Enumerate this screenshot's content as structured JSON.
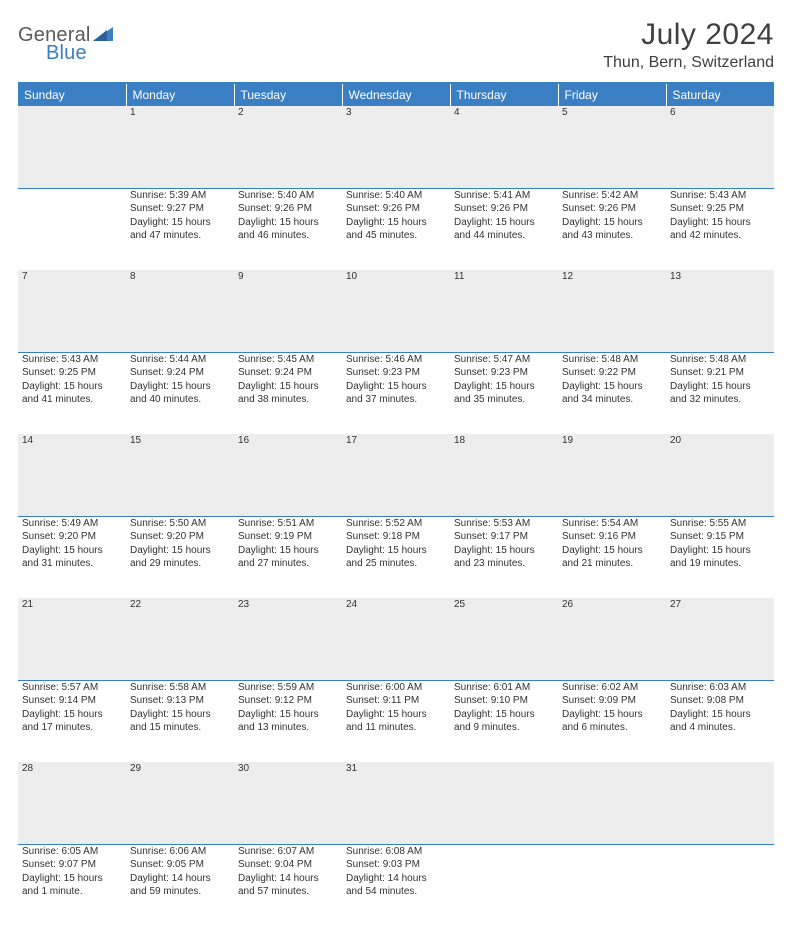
{
  "logo": {
    "word1": "General",
    "word2": "Blue"
  },
  "title": "July 2024",
  "location": "Thun, Bern, Switzerland",
  "colors": {
    "accent": "#3a7fc4",
    "header_bg": "#3a7fc4",
    "header_text": "#ffffff",
    "daynum_bg": "#ededed",
    "text": "#333333",
    "title_text": "#404040"
  },
  "weekdays": [
    "Sunday",
    "Monday",
    "Tuesday",
    "Wednesday",
    "Thursday",
    "Friday",
    "Saturday"
  ],
  "weeks": [
    {
      "nums": [
        "",
        "1",
        "2",
        "3",
        "4",
        "5",
        "6"
      ],
      "cells": [
        [],
        [
          "Sunrise: 5:39 AM",
          "Sunset: 9:27 PM",
          "Daylight: 15 hours",
          "and 47 minutes."
        ],
        [
          "Sunrise: 5:40 AM",
          "Sunset: 9:26 PM",
          "Daylight: 15 hours",
          "and 46 minutes."
        ],
        [
          "Sunrise: 5:40 AM",
          "Sunset: 9:26 PM",
          "Daylight: 15 hours",
          "and 45 minutes."
        ],
        [
          "Sunrise: 5:41 AM",
          "Sunset: 9:26 PM",
          "Daylight: 15 hours",
          "and 44 minutes."
        ],
        [
          "Sunrise: 5:42 AM",
          "Sunset: 9:26 PM",
          "Daylight: 15 hours",
          "and 43 minutes."
        ],
        [
          "Sunrise: 5:43 AM",
          "Sunset: 9:25 PM",
          "Daylight: 15 hours",
          "and 42 minutes."
        ]
      ]
    },
    {
      "nums": [
        "7",
        "8",
        "9",
        "10",
        "11",
        "12",
        "13"
      ],
      "cells": [
        [
          "Sunrise: 5:43 AM",
          "Sunset: 9:25 PM",
          "Daylight: 15 hours",
          "and 41 minutes."
        ],
        [
          "Sunrise: 5:44 AM",
          "Sunset: 9:24 PM",
          "Daylight: 15 hours",
          "and 40 minutes."
        ],
        [
          "Sunrise: 5:45 AM",
          "Sunset: 9:24 PM",
          "Daylight: 15 hours",
          "and 38 minutes."
        ],
        [
          "Sunrise: 5:46 AM",
          "Sunset: 9:23 PM",
          "Daylight: 15 hours",
          "and 37 minutes."
        ],
        [
          "Sunrise: 5:47 AM",
          "Sunset: 9:23 PM",
          "Daylight: 15 hours",
          "and 35 minutes."
        ],
        [
          "Sunrise: 5:48 AM",
          "Sunset: 9:22 PM",
          "Daylight: 15 hours",
          "and 34 minutes."
        ],
        [
          "Sunrise: 5:48 AM",
          "Sunset: 9:21 PM",
          "Daylight: 15 hours",
          "and 32 minutes."
        ]
      ]
    },
    {
      "nums": [
        "14",
        "15",
        "16",
        "17",
        "18",
        "19",
        "20"
      ],
      "cells": [
        [
          "Sunrise: 5:49 AM",
          "Sunset: 9:20 PM",
          "Daylight: 15 hours",
          "and 31 minutes."
        ],
        [
          "Sunrise: 5:50 AM",
          "Sunset: 9:20 PM",
          "Daylight: 15 hours",
          "and 29 minutes."
        ],
        [
          "Sunrise: 5:51 AM",
          "Sunset: 9:19 PM",
          "Daylight: 15 hours",
          "and 27 minutes."
        ],
        [
          "Sunrise: 5:52 AM",
          "Sunset: 9:18 PM",
          "Daylight: 15 hours",
          "and 25 minutes."
        ],
        [
          "Sunrise: 5:53 AM",
          "Sunset: 9:17 PM",
          "Daylight: 15 hours",
          "and 23 minutes."
        ],
        [
          "Sunrise: 5:54 AM",
          "Sunset: 9:16 PM",
          "Daylight: 15 hours",
          "and 21 minutes."
        ],
        [
          "Sunrise: 5:55 AM",
          "Sunset: 9:15 PM",
          "Daylight: 15 hours",
          "and 19 minutes."
        ]
      ]
    },
    {
      "nums": [
        "21",
        "22",
        "23",
        "24",
        "25",
        "26",
        "27"
      ],
      "cells": [
        [
          "Sunrise: 5:57 AM",
          "Sunset: 9:14 PM",
          "Daylight: 15 hours",
          "and 17 minutes."
        ],
        [
          "Sunrise: 5:58 AM",
          "Sunset: 9:13 PM",
          "Daylight: 15 hours",
          "and 15 minutes."
        ],
        [
          "Sunrise: 5:59 AM",
          "Sunset: 9:12 PM",
          "Daylight: 15 hours",
          "and 13 minutes."
        ],
        [
          "Sunrise: 6:00 AM",
          "Sunset: 9:11 PM",
          "Daylight: 15 hours",
          "and 11 minutes."
        ],
        [
          "Sunrise: 6:01 AM",
          "Sunset: 9:10 PM",
          "Daylight: 15 hours",
          "and 9 minutes."
        ],
        [
          "Sunrise: 6:02 AM",
          "Sunset: 9:09 PM",
          "Daylight: 15 hours",
          "and 6 minutes."
        ],
        [
          "Sunrise: 6:03 AM",
          "Sunset: 9:08 PM",
          "Daylight: 15 hours",
          "and 4 minutes."
        ]
      ]
    },
    {
      "nums": [
        "28",
        "29",
        "30",
        "31",
        "",
        "",
        ""
      ],
      "cells": [
        [
          "Sunrise: 6:05 AM",
          "Sunset: 9:07 PM",
          "Daylight: 15 hours",
          "and 1 minute."
        ],
        [
          "Sunrise: 6:06 AM",
          "Sunset: 9:05 PM",
          "Daylight: 14 hours",
          "and 59 minutes."
        ],
        [
          "Sunrise: 6:07 AM",
          "Sunset: 9:04 PM",
          "Daylight: 14 hours",
          "and 57 minutes."
        ],
        [
          "Sunrise: 6:08 AM",
          "Sunset: 9:03 PM",
          "Daylight: 14 hours",
          "and 54 minutes."
        ],
        [],
        [],
        []
      ]
    }
  ]
}
